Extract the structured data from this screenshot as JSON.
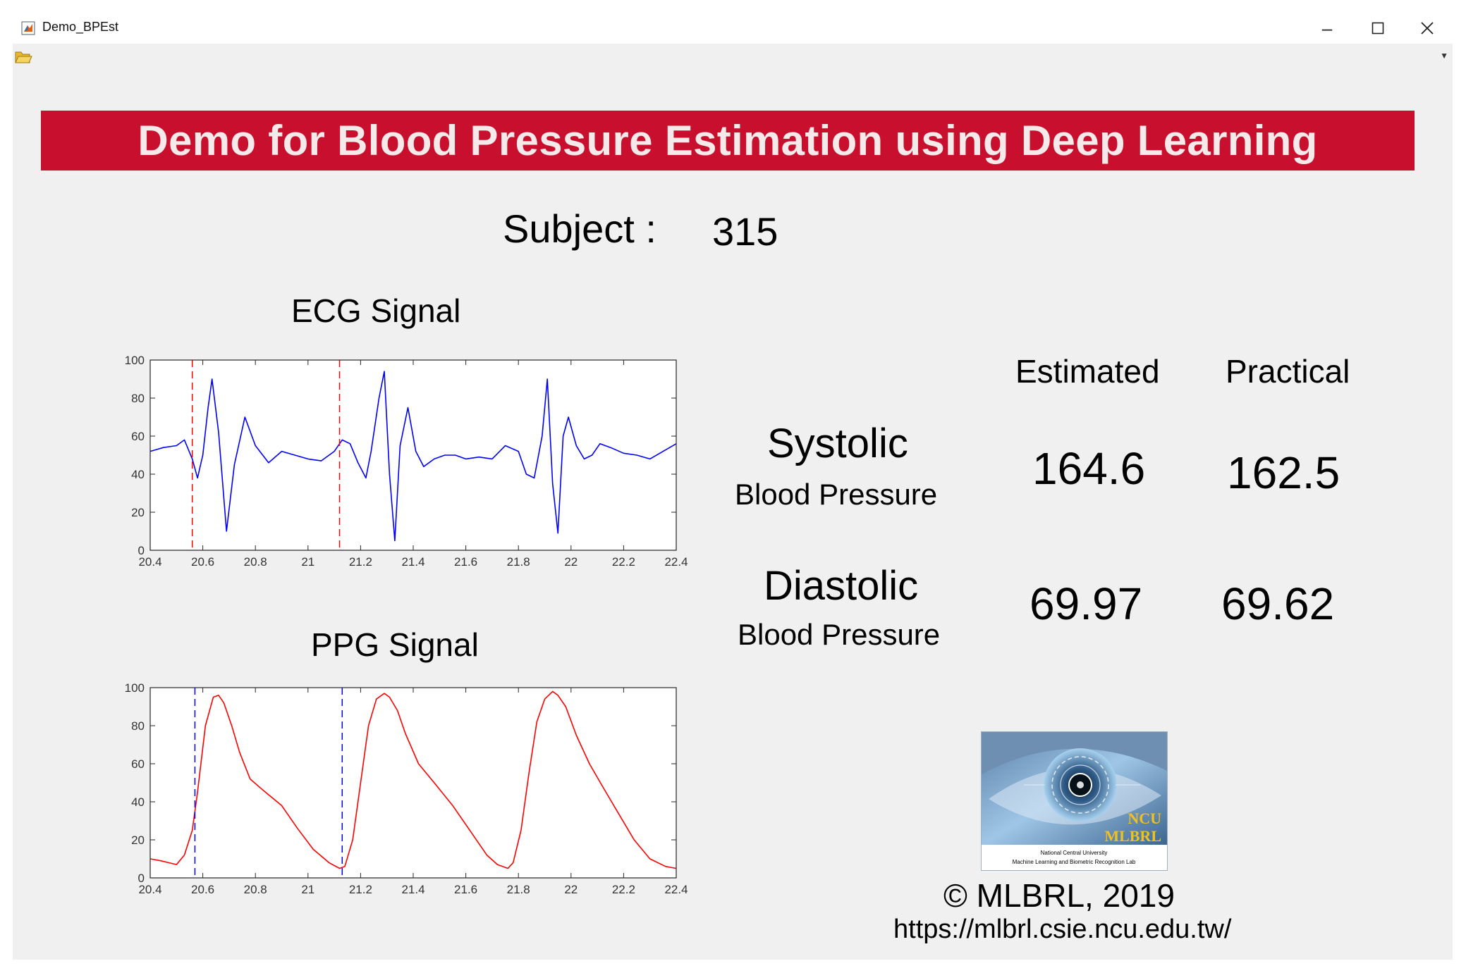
{
  "window": {
    "title": "Demo_BPEst"
  },
  "banner": {
    "title": "Demo for Blood Pressure Estimation using Deep Learning"
  },
  "subject": {
    "label": "Subject :",
    "value": "315"
  },
  "results": {
    "headers": {
      "estimated": "Estimated",
      "practical": "Practical"
    },
    "systolic": {
      "name": "Systolic",
      "sub": "Blood Pressure",
      "estimated": "164.6",
      "practical": "162.5"
    },
    "diastolic": {
      "name": "Diastolic",
      "sub": "Blood Pressure",
      "estimated": "69.97",
      "practical": "69.62"
    }
  },
  "footer": {
    "copyright": "© MLBRL, 2019",
    "url": "https://mlbrl.csie.ncu.edu.tw/",
    "logo_text": [
      "NCU",
      "MLBRL"
    ],
    "logo_caption": [
      "National Central University",
      "Machine Learning and Biometric Recognition Lab"
    ]
  },
  "chart_data": [
    {
      "type": "line",
      "title": "ECG Signal",
      "xlim": [
        20.4,
        22.4
      ],
      "ylim": [
        0,
        100
      ],
      "xticks": [
        "20.4",
        "20.6",
        "20.8",
        "21",
        "21.2",
        "21.4",
        "21.6",
        "21.8",
        "22",
        "22.2",
        "22.4"
      ],
      "yticks": [
        "0",
        "20",
        "40",
        "60",
        "80",
        "100"
      ],
      "series": [
        {
          "color": "#0000ff",
          "x": [
            20.4,
            20.45,
            20.5,
            20.53,
            20.56,
            20.58,
            20.6,
            20.62,
            20.635,
            20.66,
            20.69,
            20.72,
            20.76,
            20.8,
            20.85,
            20.9,
            20.95,
            21.0,
            21.05,
            21.1,
            21.13,
            21.16,
            21.19,
            21.22,
            21.24,
            21.27,
            21.29,
            21.31,
            21.33,
            21.35,
            21.38,
            21.41,
            21.44,
            21.48,
            21.52,
            21.56,
            21.6,
            21.65,
            21.7,
            21.75,
            21.8,
            21.83,
            21.86,
            21.89,
            21.91,
            21.93,
            21.95,
            21.97,
            21.99,
            22.02,
            22.05,
            22.08,
            22.11,
            22.15,
            22.2,
            22.25,
            22.3,
            22.35,
            22.4
          ],
          "y": [
            52,
            54,
            55,
            58,
            48,
            38,
            50,
            75,
            90,
            62,
            10,
            45,
            70,
            55,
            46,
            52,
            50,
            48,
            47,
            52,
            58,
            56,
            46,
            38,
            52,
            80,
            94,
            40,
            5,
            55,
            75,
            52,
            44,
            48,
            50,
            50,
            48,
            49,
            48,
            55,
            52,
            40,
            38,
            60,
            90,
            35,
            9,
            60,
            70,
            55,
            48,
            50,
            56,
            54,
            51,
            50,
            48,
            52,
            56
          ]
        }
      ],
      "markers": [
        {
          "x": 20.56,
          "color": "#ff0000",
          "style": "dashed"
        },
        {
          "x": 21.12,
          "color": "#ff0000",
          "style": "dashed"
        }
      ]
    },
    {
      "type": "line",
      "title": "PPG Signal",
      "xlim": [
        20.4,
        22.4
      ],
      "ylim": [
        0,
        100
      ],
      "xticks": [
        "20.4",
        "20.6",
        "20.8",
        "21",
        "21.2",
        "21.4",
        "21.6",
        "21.8",
        "22",
        "22.2",
        "22.4"
      ],
      "yticks": [
        "0",
        "20",
        "40",
        "60",
        "80",
        "100"
      ],
      "series": [
        {
          "color": "#ff0000",
          "x": [
            20.4,
            20.44,
            20.47,
            20.5,
            20.53,
            20.56,
            20.58,
            20.61,
            20.64,
            20.66,
            20.68,
            20.71,
            20.74,
            20.78,
            20.83,
            20.9,
            20.96,
            21.02,
            21.08,
            21.12,
            21.14,
            21.17,
            21.2,
            21.23,
            21.26,
            21.29,
            21.31,
            21.34,
            21.37,
            21.42,
            21.48,
            21.55,
            21.62,
            21.68,
            21.72,
            21.76,
            21.78,
            21.81,
            21.84,
            21.87,
            21.9,
            21.93,
            21.95,
            21.98,
            22.02,
            22.07,
            22.12,
            22.18,
            22.24,
            22.3,
            22.36,
            22.4
          ],
          "y": [
            10,
            9,
            8,
            7,
            12,
            25,
            45,
            80,
            95,
            96,
            92,
            80,
            66,
            52,
            46,
            38,
            26,
            15,
            8,
            5,
            6,
            20,
            50,
            80,
            94,
            97,
            95,
            88,
            76,
            60,
            50,
            38,
            24,
            12,
            7,
            5,
            8,
            25,
            55,
            82,
            94,
            98,
            96,
            90,
            75,
            60,
            48,
            34,
            20,
            10,
            6,
            5
          ]
        }
      ],
      "markers": [
        {
          "x": 20.57,
          "color": "#0000ff",
          "style": "dashed"
        },
        {
          "x": 21.13,
          "color": "#0000ff",
          "style": "dashed"
        }
      ]
    }
  ]
}
